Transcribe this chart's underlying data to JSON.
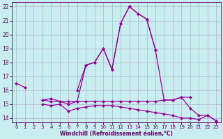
{
  "xlabel": "Windchill (Refroidissement éolien,°C)",
  "background_color": "#c8eef0",
  "grid_color": "#b0b0cc",
  "line_color": "#990099",
  "x": [
    0,
    1,
    2,
    3,
    4,
    5,
    6,
    7,
    8,
    9,
    10,
    11,
    12,
    13,
    14,
    15,
    16,
    17,
    18,
    19,
    20,
    21,
    22,
    23
  ],
  "main_line": [
    16.5,
    16.2,
    null,
    null,
    null,
    null,
    null,
    16.0,
    17.8,
    18.0,
    19.0,
    17.5,
    20.8,
    22.0,
    21.5,
    21.1,
    18.9,
    null,
    null,
    null,
    null,
    null,
    null,
    null
  ],
  "upper_line": [
    null,
    null,
    null,
    15.3,
    15.4,
    15.2,
    15.2,
    15.2,
    15.2,
    15.2,
    15.2,
    15.2,
    15.2,
    15.2,
    15.2,
    15.2,
    15.2,
    15.3,
    15.3,
    15.5,
    15.5,
    null,
    null,
    null
  ],
  "lower_line": [
    null,
    null,
    null,
    15.0,
    14.9,
    15.0,
    14.5,
    14.7,
    14.8,
    14.9,
    14.9,
    14.9,
    14.8,
    14.7,
    14.6,
    14.5,
    14.4,
    14.3,
    14.2,
    14.0,
    14.0,
    13.9,
    14.2,
    13.8
  ],
  "diag_line": [
    null,
    null,
    null,
    15.3,
    15.2,
    15.2,
    15.0,
    15.2,
    17.8,
    18.0,
    19.0,
    17.5,
    20.8,
    22.0,
    21.5,
    21.1,
    18.9,
    15.3,
    15.3,
    15.5,
    14.7,
    14.2,
    14.2,
    13.8
  ],
  "ylim": [
    13.7,
    22.3
  ],
  "yticks": [
    14,
    15,
    16,
    17,
    18,
    19,
    20,
    21,
    22
  ],
  "xlim": [
    -0.5,
    23.5
  ],
  "xticks": [
    0,
    1,
    2,
    3,
    4,
    5,
    6,
    7,
    8,
    9,
    10,
    11,
    12,
    13,
    14,
    15,
    16,
    17,
    18,
    19,
    20,
    21,
    22,
    23
  ]
}
